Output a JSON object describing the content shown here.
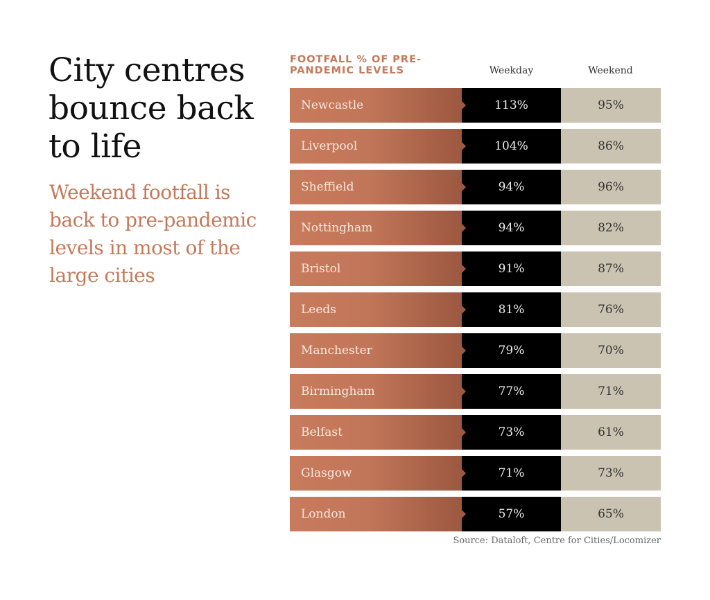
{
  "title": "City centres bounce back to life",
  "subtitle": "Weekend footfall is back to pre-pandemic levels in most of the large cities",
  "source": "Source: Dataloft, Centre for Cities/Locomizer",
  "chart_data": {
    "type": "table",
    "title": "FOOTFALL % OF PRE-PANDEMIC LEVELS",
    "columns": [
      "Weekday",
      "Weekend"
    ],
    "rows": [
      {
        "city": "Newcastle",
        "weekday": "113%",
        "weekend": "95%"
      },
      {
        "city": "Liverpool",
        "weekday": "104%",
        "weekend": "86%"
      },
      {
        "city": "Sheffield",
        "weekday": "94%",
        "weekend": "96%"
      },
      {
        "city": "Nottingham",
        "weekday": "94%",
        "weekend": "82%"
      },
      {
        "city": "Bristol",
        "weekday": "91%",
        "weekend": "87%"
      },
      {
        "city": "Leeds",
        "weekday": "81%",
        "weekend": "76%"
      },
      {
        "city": "Manchester",
        "weekday": "79%",
        "weekend": "70%"
      },
      {
        "city": "Birmingham",
        "weekday": "77%",
        "weekend": "71%"
      },
      {
        "city": "Belfast",
        "weekday": "73%",
        "weekend": "61%"
      },
      {
        "city": "Glasgow",
        "weekday": "71%",
        "weekend": "73%"
      },
      {
        "city": "London",
        "weekday": "57%",
        "weekend": "65%"
      }
    ]
  },
  "colors": {
    "accent": "#c37a5c",
    "weekday_bg": "#000000",
    "weekend_bg": "#cbc3b1"
  }
}
